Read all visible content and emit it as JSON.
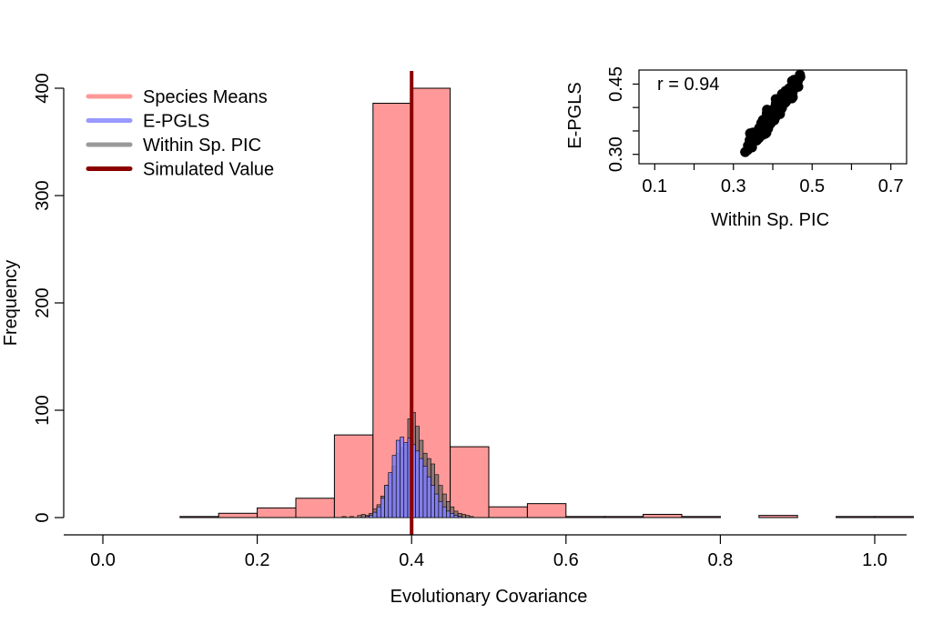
{
  "chart_data": [
    {
      "type": "histogram",
      "xlabel": "Evolutionary Covariance",
      "ylabel": "Frequency",
      "xlim": [
        0,
        1
      ],
      "ylim": [
        0,
        400
      ],
      "x_ticks": [
        "0.0",
        "0.2",
        "0.4",
        "0.6",
        "0.8",
        "1.0"
      ],
      "y_ticks": [
        "0",
        "100",
        "200",
        "300",
        "400"
      ],
      "legend": [
        {
          "label": "Species Means",
          "color": "#ff9999"
        },
        {
          "label": "E-PGLS",
          "color": "#9999ff"
        },
        {
          "label": "Within Sp. PIC",
          "color": "#999999"
        },
        {
          "label": "Simulated Value",
          "color": "#8b0000"
        }
      ],
      "legend_position": "top-left",
      "simulated_value": 0.4,
      "series": [
        {
          "name": "Species Means",
          "color": "#ff9999",
          "bin_width": 0.05,
          "bins": [
            {
              "x0": 0.1,
              "count": 1
            },
            {
              "x0": 0.15,
              "count": 4
            },
            {
              "x0": 0.2,
              "count": 9
            },
            {
              "x0": 0.25,
              "count": 18
            },
            {
              "x0": 0.3,
              "count": 77
            },
            {
              "x0": 0.35,
              "count": 386
            },
            {
              "x0": 0.4,
              "count": 400
            },
            {
              "x0": 0.45,
              "count": 66
            },
            {
              "x0": 0.5,
              "count": 10
            },
            {
              "x0": 0.55,
              "count": 13
            },
            {
              "x0": 0.6,
              "count": 1
            },
            {
              "x0": 0.65,
              "count": 1
            },
            {
              "x0": 0.7,
              "count": 3
            },
            {
              "x0": 0.75,
              "count": 1
            },
            {
              "x0": 0.85,
              "count": 2
            },
            {
              "x0": 0.95,
              "count": 1
            },
            {
              "x0": 1.0,
              "count": 1
            }
          ]
        },
        {
          "name": "E-PGLS",
          "color": "#9999ff",
          "bin_width": 0.005,
          "bins": [
            {
              "x0": 0.34,
              "count": 1
            },
            {
              "x0": 0.345,
              "count": 2
            },
            {
              "x0": 0.35,
              "count": 5
            },
            {
              "x0": 0.355,
              "count": 10
            },
            {
              "x0": 0.36,
              "count": 18
            },
            {
              "x0": 0.365,
              "count": 30
            },
            {
              "x0": 0.37,
              "count": 42
            },
            {
              "x0": 0.375,
              "count": 58
            },
            {
              "x0": 0.38,
              "count": 72
            },
            {
              "x0": 0.385,
              "count": 75
            },
            {
              "x0": 0.39,
              "count": 70
            },
            {
              "x0": 0.395,
              "count": 74
            },
            {
              "x0": 0.4,
              "count": 68
            },
            {
              "x0": 0.405,
              "count": 62
            },
            {
              "x0": 0.41,
              "count": 55
            },
            {
              "x0": 0.415,
              "count": 48
            },
            {
              "x0": 0.42,
              "count": 38
            },
            {
              "x0": 0.425,
              "count": 30
            },
            {
              "x0": 0.43,
              "count": 22
            },
            {
              "x0": 0.435,
              "count": 15
            },
            {
              "x0": 0.44,
              "count": 10
            },
            {
              "x0": 0.445,
              "count": 6
            },
            {
              "x0": 0.45,
              "count": 4
            },
            {
              "x0": 0.455,
              "count": 2
            },
            {
              "x0": 0.46,
              "count": 1
            }
          ]
        },
        {
          "name": "Within Sp. PIC",
          "color": "#999999",
          "bin_width": 0.005,
          "bins": [
            {
              "x0": 0.31,
              "count": 1
            },
            {
              "x0": 0.32,
              "count": 1
            },
            {
              "x0": 0.33,
              "count": 2
            },
            {
              "x0": 0.335,
              "count": 3
            },
            {
              "x0": 0.34,
              "count": 2
            },
            {
              "x0": 0.345,
              "count": 4
            },
            {
              "x0": 0.35,
              "count": 8
            },
            {
              "x0": 0.355,
              "count": 12
            },
            {
              "x0": 0.36,
              "count": 20
            },
            {
              "x0": 0.365,
              "count": 30
            },
            {
              "x0": 0.37,
              "count": 40
            },
            {
              "x0": 0.375,
              "count": 48
            },
            {
              "x0": 0.38,
              "count": 60
            },
            {
              "x0": 0.385,
              "count": 65
            },
            {
              "x0": 0.39,
              "count": 68
            },
            {
              "x0": 0.395,
              "count": 92
            },
            {
              "x0": 0.4,
              "count": 98
            },
            {
              "x0": 0.405,
              "count": 85
            },
            {
              "x0": 0.41,
              "count": 72
            },
            {
              "x0": 0.415,
              "count": 60
            },
            {
              "x0": 0.42,
              "count": 55
            },
            {
              "x0": 0.425,
              "count": 50
            },
            {
              "x0": 0.43,
              "count": 40
            },
            {
              "x0": 0.435,
              "count": 30
            },
            {
              "x0": 0.44,
              "count": 22
            },
            {
              "x0": 0.445,
              "count": 15
            },
            {
              "x0": 0.45,
              "count": 10
            },
            {
              "x0": 0.455,
              "count": 6
            },
            {
              "x0": 0.46,
              "count": 4
            },
            {
              "x0": 0.465,
              "count": 3
            },
            {
              "x0": 0.47,
              "count": 2
            },
            {
              "x0": 0.475,
              "count": 1
            }
          ]
        }
      ]
    },
    {
      "type": "scatter",
      "xlabel": "Within Sp. PIC",
      "ylabel": "E-PGLS",
      "annotation": "r = 0.94",
      "xlim": [
        0.06,
        0.74
      ],
      "ylim": [
        0.28,
        0.48
      ],
      "x_ticks": [
        "0.1",
        "0.3",
        "0.5",
        "0.7"
      ],
      "y_ticks": [
        "0.30",
        "0.45"
      ],
      "point_color": "#000000",
      "correlation": 0.94
    }
  ]
}
